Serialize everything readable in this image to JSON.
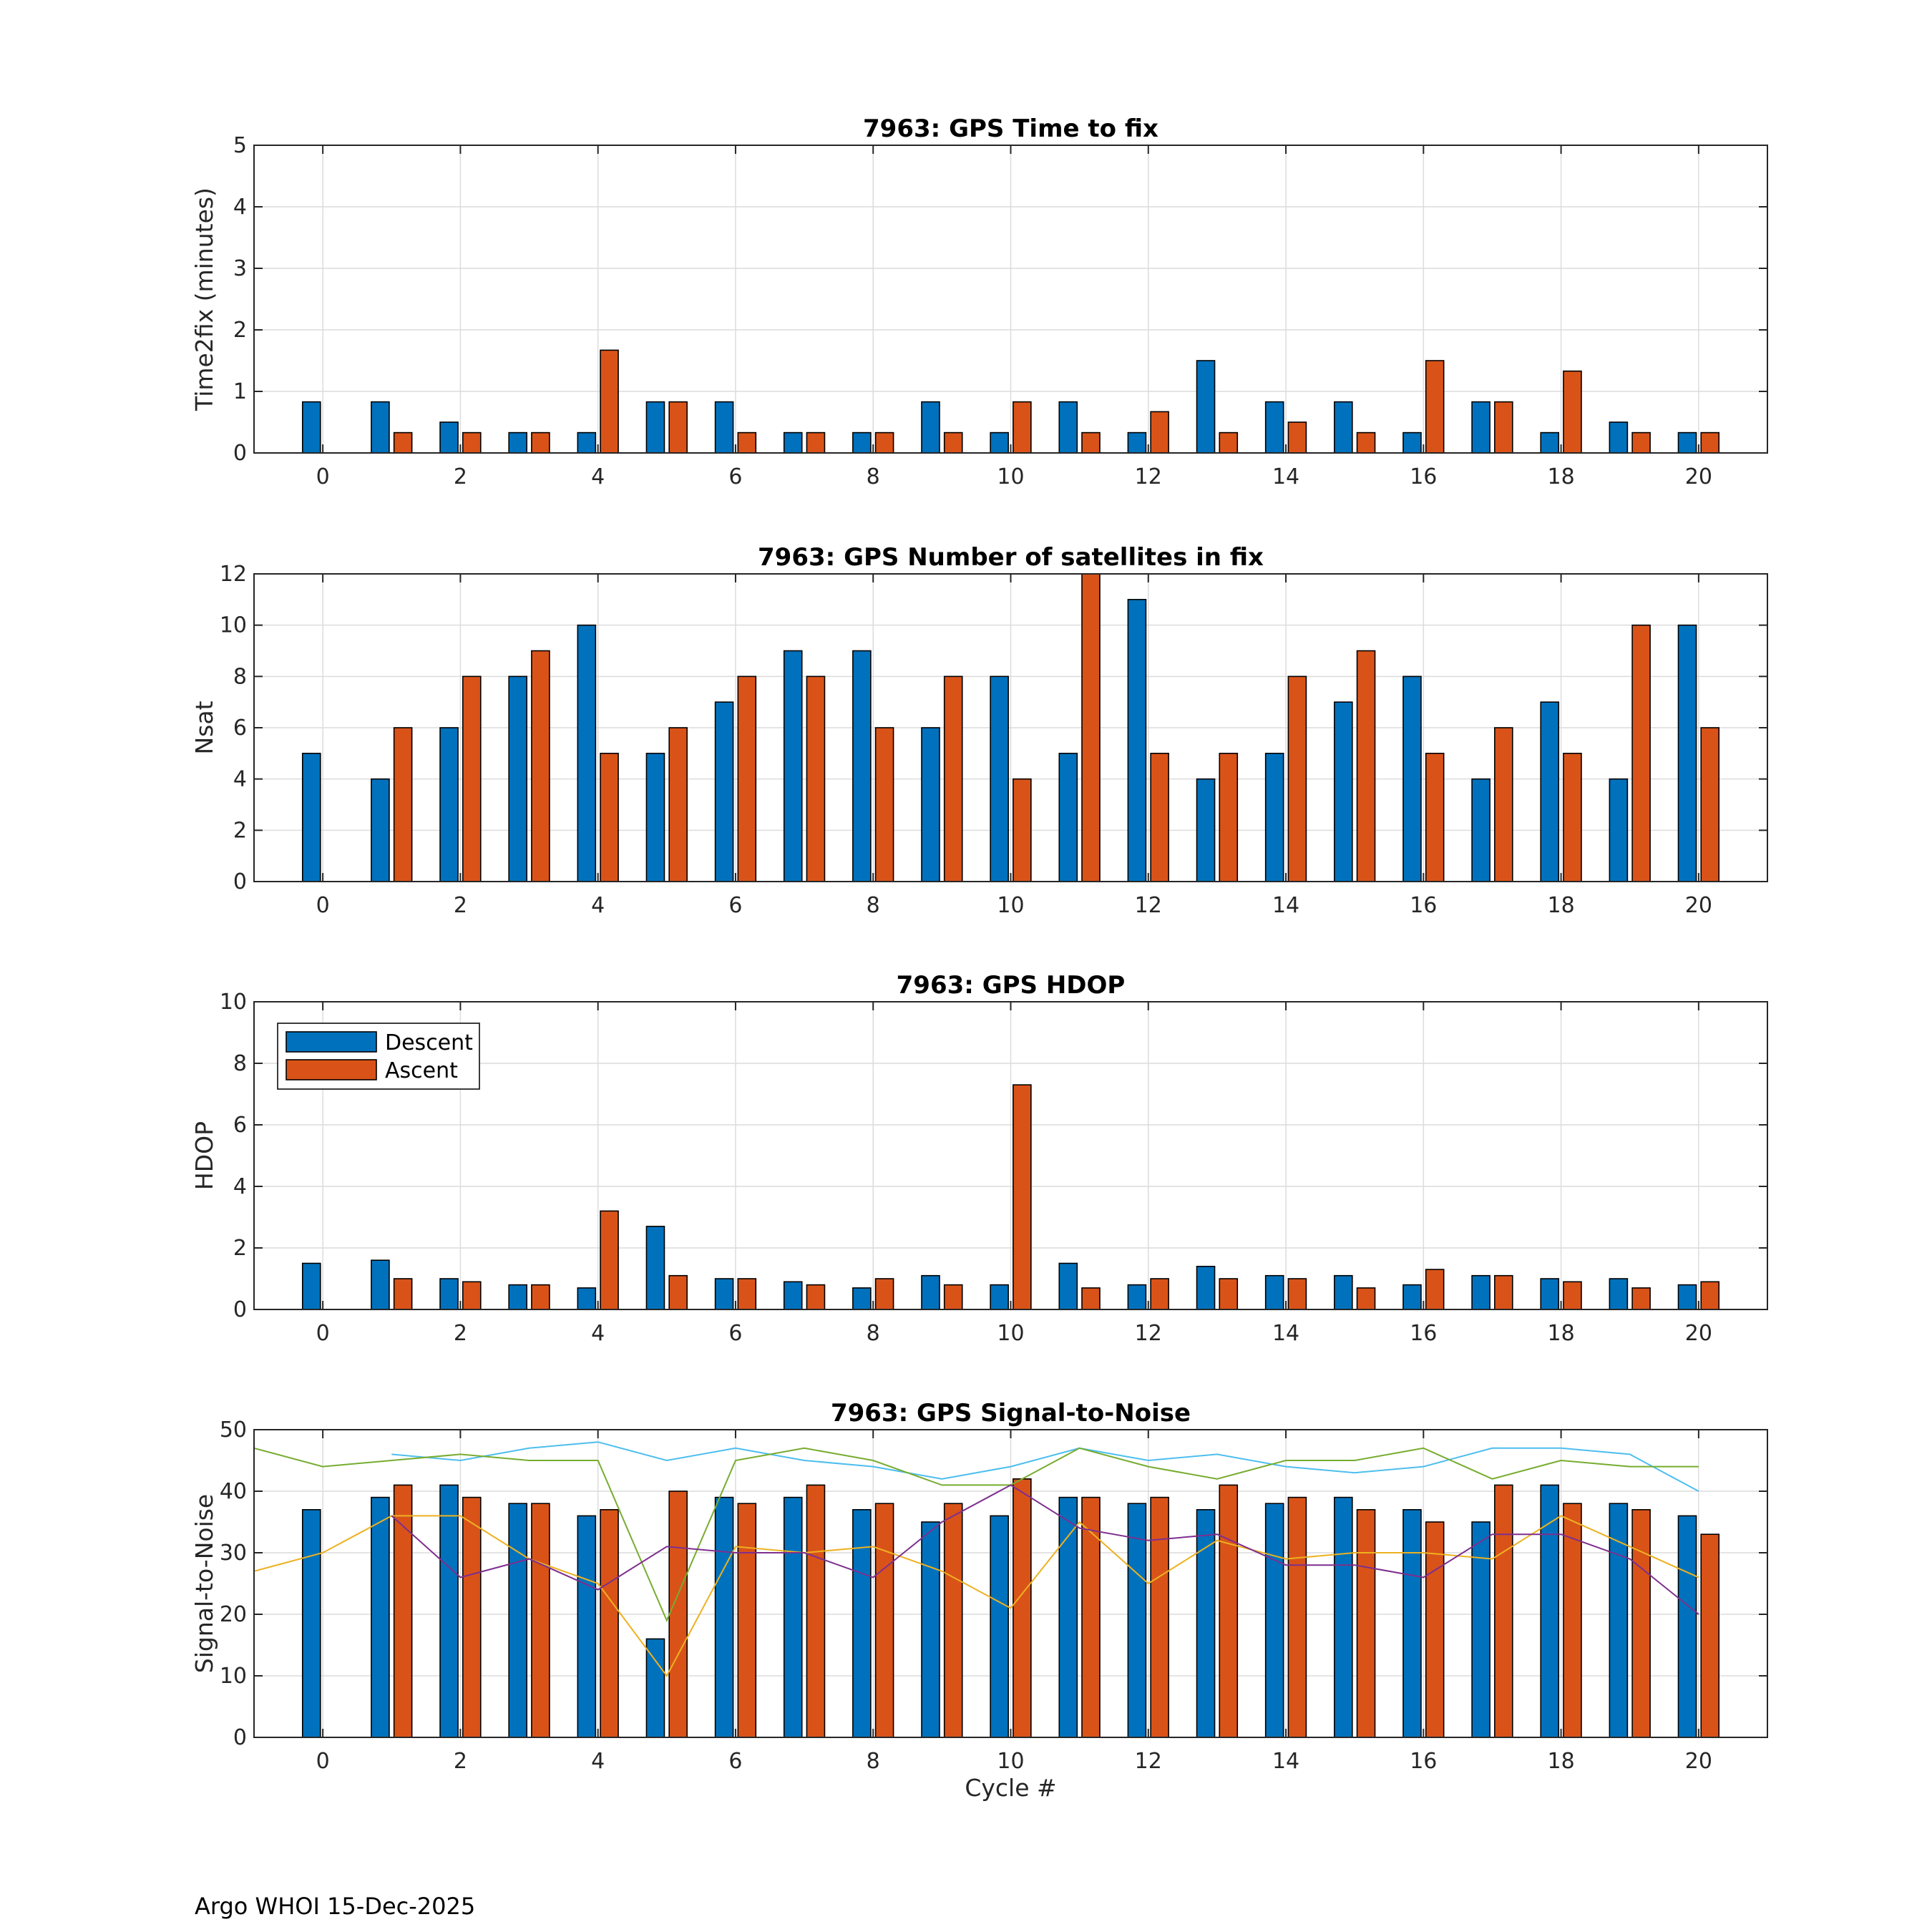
{
  "footer": "Argo WHOI 15-Dec-2025",
  "colors": {
    "descent": "#0072BD",
    "ascent": "#D95319",
    "snr_lines": [
      "#4DBEEE",
      "#77AC30",
      "#EDB120",
      "#7E2F8E"
    ]
  },
  "chart_data": [
    {
      "type": "bar",
      "title": "7963: GPS Time to fix",
      "xlabel": "",
      "ylabel": "Time2fix (minutes)",
      "ylim": [
        0,
        5
      ],
      "yticks": [
        "0",
        "1",
        "2",
        "3",
        "4",
        "5"
      ],
      "xlim": [
        -1,
        21
      ],
      "xticks": [
        "0",
        "2",
        "4",
        "6",
        "8",
        "10",
        "12",
        "14",
        "16",
        "18",
        "20"
      ],
      "grid": true,
      "categories": [
        0,
        1,
        2,
        3,
        4,
        5,
        6,
        7,
        8,
        9,
        10,
        11,
        12,
        13,
        14,
        15,
        16,
        17,
        18,
        19,
        20
      ],
      "series": [
        {
          "name": "Descent",
          "values": [
            0.83,
            0.83,
            0.5,
            0.33,
            0.33,
            0.83,
            0.83,
            0.33,
            0.33,
            0.83,
            0.33,
            0.83,
            0.33,
            1.5,
            0.83,
            0.83,
            0.33,
            0.83,
            0.33,
            0.5,
            0.33
          ]
        },
        {
          "name": "Ascent",
          "values": [
            0,
            0.33,
            0.33,
            0.33,
            1.67,
            0.83,
            0.33,
            0.33,
            0.33,
            0.33,
            0.83,
            0.33,
            0.67,
            0.33,
            0.5,
            0.33,
            1.5,
            0.83,
            1.33,
            0.33,
            0.33
          ]
        }
      ]
    },
    {
      "type": "bar",
      "title": "7963: GPS Number of satellites in fix",
      "xlabel": "",
      "ylabel": "Nsat",
      "ylim": [
        0,
        12
      ],
      "yticks": [
        "0",
        "2",
        "4",
        "6",
        "8",
        "10",
        "12"
      ],
      "xlim": [
        -1,
        21
      ],
      "xticks": [
        "0",
        "2",
        "4",
        "6",
        "8",
        "10",
        "12",
        "14",
        "16",
        "18",
        "20"
      ],
      "grid": true,
      "categories": [
        0,
        1,
        2,
        3,
        4,
        5,
        6,
        7,
        8,
        9,
        10,
        11,
        12,
        13,
        14,
        15,
        16,
        17,
        18,
        19,
        20
      ],
      "series": [
        {
          "name": "Descent",
          "values": [
            5,
            4,
            6,
            8,
            10,
            5,
            7,
            9,
            9,
            6,
            8,
            5,
            11,
            4,
            5,
            7,
            8,
            4,
            7,
            4,
            10
          ]
        },
        {
          "name": "Ascent",
          "values": [
            0,
            6,
            8,
            9,
            5,
            6,
            8,
            8,
            6,
            8,
            4,
            12,
            5,
            5,
            8,
            9,
            5,
            6,
            5,
            10,
            6
          ]
        }
      ]
    },
    {
      "type": "bar",
      "title": "7963: GPS HDOP",
      "xlabel": "",
      "ylabel": "HDOP",
      "ylim": [
        0,
        10
      ],
      "yticks": [
        "0",
        "2",
        "4",
        "6",
        "8",
        "10"
      ],
      "xlim": [
        -1,
        21
      ],
      "xticks": [
        "0",
        "2",
        "4",
        "6",
        "8",
        "10",
        "12",
        "14",
        "16",
        "18",
        "20"
      ],
      "grid": true,
      "legend": {
        "position": "top-left",
        "entries": [
          "Descent",
          "Ascent"
        ]
      },
      "categories": [
        0,
        1,
        2,
        3,
        4,
        5,
        6,
        7,
        8,
        9,
        10,
        11,
        12,
        13,
        14,
        15,
        16,
        17,
        18,
        19,
        20
      ],
      "series": [
        {
          "name": "Descent",
          "values": [
            1.5,
            1.6,
            1.0,
            0.8,
            0.7,
            2.7,
            1.0,
            0.9,
            0.7,
            1.1,
            0.8,
            1.5,
            0.8,
            1.4,
            1.1,
            1.1,
            0.8,
            1.1,
            1.0,
            1.0,
            0.8
          ]
        },
        {
          "name": "Ascent",
          "values": [
            0,
            1.0,
            0.9,
            0.8,
            3.2,
            1.1,
            1.0,
            0.8,
            1.0,
            0.8,
            7.3,
            0.7,
            1.0,
            1.0,
            1.0,
            0.7,
            1.3,
            1.1,
            0.9,
            0.7,
            0.9
          ]
        }
      ]
    },
    {
      "type": "bar",
      "title": "7963: GPS Signal-to-Noise",
      "xlabel": "Cycle #",
      "ylabel": "Signal-to-Noise",
      "ylim": [
        0,
        50
      ],
      "yticks": [
        "0",
        "10",
        "20",
        "30",
        "40",
        "50"
      ],
      "xlim": [
        -1,
        21
      ],
      "xticks": [
        "0",
        "2",
        "4",
        "6",
        "8",
        "10",
        "12",
        "14",
        "16",
        "18",
        "20"
      ],
      "grid": true,
      "categories": [
        0,
        1,
        2,
        3,
        4,
        5,
        6,
        7,
        8,
        9,
        10,
        11,
        12,
        13,
        14,
        15,
        16,
        17,
        18,
        19,
        20
      ],
      "series": [
        {
          "name": "Descent",
          "values": [
            37,
            39,
            41,
            38,
            36,
            16,
            39,
            39,
            37,
            35,
            36,
            39,
            38,
            37,
            38,
            39,
            37,
            35,
            41,
            38,
            36
          ]
        },
        {
          "name": "Ascent",
          "values": [
            0,
            41,
            39,
            38,
            37,
            40,
            38,
            41,
            38,
            38,
            42,
            39,
            39,
            41,
            39,
            37,
            35,
            41,
            38,
            37,
            33
          ]
        }
      ],
      "lines": [
        {
          "name": "snr-max",
          "x": [
            1,
            2,
            3,
            4,
            5,
            6,
            7,
            8,
            9,
            10,
            11,
            12,
            13,
            14,
            15,
            16,
            17,
            18,
            19,
            20
          ],
          "values": [
            46,
            45,
            47,
            48,
            45,
            47,
            45,
            44,
            42,
            44,
            47,
            45,
            46,
            44,
            43,
            44,
            47,
            47,
            46,
            40
          ]
        },
        {
          "name": "snr-green",
          "x": [
            -1,
            0,
            1,
            2,
            3,
            4,
            5,
            6,
            7,
            8,
            9,
            10,
            11,
            12,
            13,
            14,
            15,
            16,
            17,
            18,
            19,
            20
          ],
          "values": [
            47,
            44,
            45,
            46,
            45,
            45,
            19,
            45,
            47,
            45,
            41,
            41,
            47,
            44,
            42,
            45,
            45,
            47,
            42,
            45,
            44,
            44
          ]
        },
        {
          "name": "snr-yellow",
          "x": [
            -1,
            0,
            1,
            2,
            3,
            4,
            5,
            6,
            7,
            8,
            9,
            10,
            11,
            12,
            13,
            14,
            15,
            16,
            17,
            18,
            19,
            20
          ],
          "values": [
            27,
            30,
            36,
            36,
            29,
            25,
            10,
            31,
            30,
            31,
            27,
            21,
            35,
            25,
            32,
            29,
            30,
            30,
            29,
            36,
            31,
            26
          ]
        },
        {
          "name": "snr-purple",
          "x": [
            1,
            2,
            3,
            4,
            5,
            6,
            7,
            8,
            9,
            10,
            11,
            12,
            13,
            14,
            15,
            16,
            17,
            18,
            19,
            20
          ],
          "values": [
            36,
            26,
            29,
            24,
            31,
            30,
            30,
            26,
            35,
            41,
            34,
            32,
            33,
            28,
            28,
            26,
            33,
            33,
            29,
            20
          ]
        }
      ]
    }
  ]
}
